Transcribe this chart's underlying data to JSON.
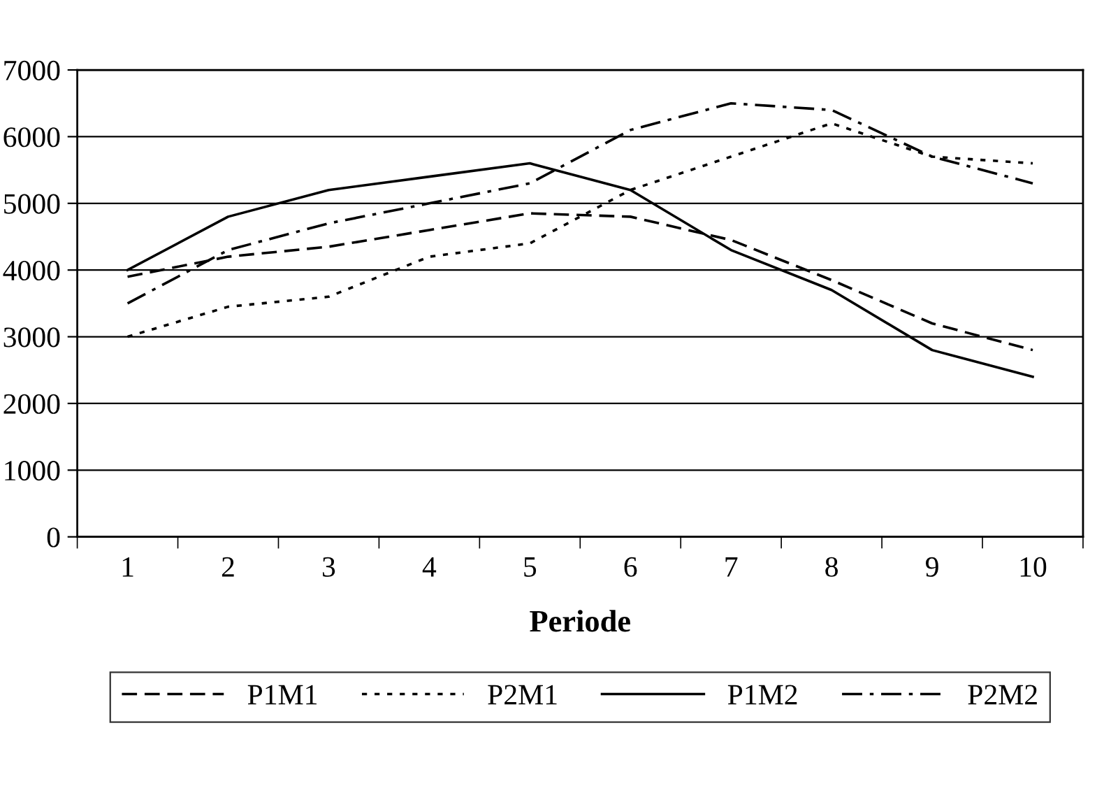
{
  "chart_data": {
    "type": "line",
    "xlabel": "Periode",
    "categories": [
      "1",
      "2",
      "3",
      "4",
      "5",
      "6",
      "7",
      "8",
      "9",
      "10"
    ],
    "series": [
      {
        "name": "P1M1",
        "color": "#000000",
        "line_style": "dashed",
        "values": [
          3900,
          4200,
          4350,
          4600,
          4850,
          4800,
          4450,
          3850,
          3200,
          2800
        ]
      },
      {
        "name": "P2M1",
        "color": "#000000",
        "line_style": "dotted",
        "values": [
          3000,
          3450,
          3600,
          4200,
          4400,
          5200,
          5700,
          6200,
          5700,
          5600
        ]
      },
      {
        "name": "P1M2",
        "color": "#000000",
        "line_style": "solid",
        "values": [
          4000,
          4800,
          5200,
          5400,
          5600,
          5200,
          4300,
          3700,
          2800,
          2400
        ]
      },
      {
        "name": "P2M2",
        "color": "#000000",
        "line_style": "dashdot",
        "values": [
          3500,
          4300,
          4700,
          5000,
          5300,
          6100,
          6500,
          6400,
          5700,
          5300
        ]
      }
    ],
    "ylim": [
      0,
      7000
    ],
    "yticks": [
      0,
      1000,
      2000,
      3000,
      4000,
      5000,
      6000,
      7000
    ],
    "grid": "y",
    "legend": "bottom",
    "marker": "none"
  }
}
